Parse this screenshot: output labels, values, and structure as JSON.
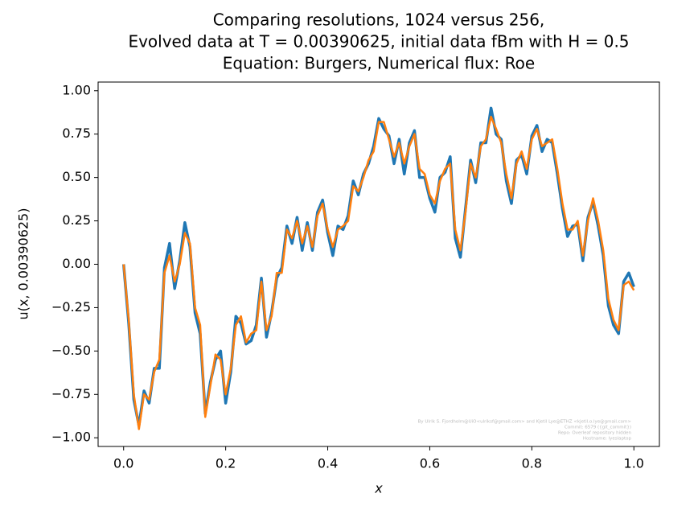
{
  "chart_data": {
    "type": "line",
    "title": [
      "Comparing resolutions, 1024 versus 256,",
      "Evolved data at T = 0.00390625, initial data fBm with H = 0.5",
      "Equation: Burgers, Numerical flux: Roe"
    ],
    "xlabel": "x",
    "ylabel": "u(x, 0.00390625)",
    "watermark": [
      "By Ulrik S. Fjordholm@UiO<ulriksf@gmail.com> and Kjetil Lye@ETHZ <kjetil.o.lye@gmail.com>",
      "Commit: 6579 ({git_commit})",
      "Repo: Overleaf repository hidden",
      "Hostname: lyeslaptop"
    ],
    "xlim": [
      -0.05,
      1.05
    ],
    "ylim": [
      -1.05,
      1.05
    ],
    "xticks": [
      {
        "value": 0,
        "label": "0.0"
      },
      {
        "value": 0.2,
        "label": "0.2"
      },
      {
        "value": 0.4,
        "label": "0.4"
      },
      {
        "value": 0.6,
        "label": "0.6"
      },
      {
        "value": 0.8,
        "label": "0.8"
      },
      {
        "value": 1,
        "label": "1.0"
      }
    ],
    "yticks": [
      {
        "value": -1,
        "label": "−1.00"
      },
      {
        "value": -0.75,
        "label": "−0.75"
      },
      {
        "value": -0.5,
        "label": "−0.50"
      },
      {
        "value": -0.25,
        "label": "−0.25"
      },
      {
        "value": 0,
        "label": "0.00"
      },
      {
        "value": 0.25,
        "label": "0.25"
      },
      {
        "value": 0.5,
        "label": "0.50"
      },
      {
        "value": 0.75,
        "label": "0.75"
      },
      {
        "value": 1,
        "label": "1.00"
      }
    ],
    "grid": false,
    "x": [
      0,
      0.01,
      0.02,
      0.03,
      0.04,
      0.05,
      0.06,
      0.07,
      0.08,
      0.09,
      0.1,
      0.11,
      0.12,
      0.13,
      0.14,
      0.15,
      0.16,
      0.17,
      0.18,
      0.19,
      0.2,
      0.21,
      0.22,
      0.23,
      0.24,
      0.25,
      0.26,
      0.27,
      0.28,
      0.29,
      0.3,
      0.31,
      0.32,
      0.33,
      0.34,
      0.35,
      0.36,
      0.37,
      0.38,
      0.39,
      0.4,
      0.41,
      0.42,
      0.43,
      0.44,
      0.45,
      0.46,
      0.47,
      0.48,
      0.49,
      0.5,
      0.51,
      0.52,
      0.53,
      0.54,
      0.55,
      0.56,
      0.57,
      0.58,
      0.59,
      0.6,
      0.61,
      0.62,
      0.63,
      0.64,
      0.65,
      0.66,
      0.67,
      0.68,
      0.69,
      0.7,
      0.71,
      0.72,
      0.73,
      0.74,
      0.75,
      0.76,
      0.77,
      0.78,
      0.79,
      0.8,
      0.81,
      0.82,
      0.83,
      0.84,
      0.85,
      0.86,
      0.87,
      0.88,
      0.89,
      0.9,
      0.91,
      0.92,
      0.93,
      0.94,
      0.95,
      0.96,
      0.97,
      0.98,
      0.99,
      1
    ],
    "series": [
      {
        "color": "#1f77b4",
        "values": [
          0,
          -0.34,
          -0.78,
          -0.93,
          -0.73,
          -0.8,
          -0.6,
          -0.6,
          -0.02,
          0.12,
          -0.14,
          0.02,
          0.24,
          0.1,
          -0.28,
          -0.4,
          -0.86,
          -0.68,
          -0.55,
          -0.5,
          -0.8,
          -0.62,
          -0.3,
          -0.34,
          -0.46,
          -0.44,
          -0.35,
          -0.08,
          -0.42,
          -0.28,
          -0.08,
          -0.02,
          0.22,
          0.12,
          0.27,
          0.08,
          0.24,
          0.08,
          0.3,
          0.37,
          0.18,
          0.05,
          0.22,
          0.2,
          0.28,
          0.48,
          0.4,
          0.52,
          0.58,
          0.68,
          0.84,
          0.78,
          0.74,
          0.58,
          0.72,
          0.52,
          0.7,
          0.77,
          0.5,
          0.5,
          0.38,
          0.3,
          0.5,
          0.53,
          0.62,
          0.15,
          0.04,
          0.32,
          0.6,
          0.47,
          0.7,
          0.7,
          0.9,
          0.75,
          0.72,
          0.48,
          0.35,
          0.6,
          0.63,
          0.52,
          0.74,
          0.8,
          0.65,
          0.72,
          0.7,
          0.52,
          0.32,
          0.16,
          0.22,
          0.23,
          0.02,
          0.27,
          0.36,
          0.22,
          0.05,
          -0.24,
          -0.35,
          -0.4,
          -0.1,
          -0.05,
          -0.13
        ]
      },
      {
        "color": "#ff7f0e",
        "values": [
          0,
          -0.32,
          -0.75,
          -0.95,
          -0.75,
          -0.78,
          -0.62,
          -0.55,
          -0.05,
          0.05,
          -0.1,
          0,
          0.18,
          0.12,
          -0.25,
          -0.35,
          -0.88,
          -0.7,
          -0.52,
          -0.55,
          -0.75,
          -0.6,
          -0.35,
          -0.3,
          -0.45,
          -0.4,
          -0.38,
          -0.1,
          -0.38,
          -0.3,
          -0.05,
          -0.05,
          0.2,
          0.15,
          0.25,
          0.12,
          0.22,
          0.1,
          0.28,
          0.35,
          0.2,
          0.1,
          0.2,
          0.22,
          0.25,
          0.45,
          0.42,
          0.5,
          0.6,
          0.65,
          0.82,
          0.82,
          0.72,
          0.62,
          0.7,
          0.58,
          0.68,
          0.75,
          0.55,
          0.52,
          0.4,
          0.35,
          0.48,
          0.55,
          0.58,
          0.2,
          0.08,
          0.3,
          0.58,
          0.5,
          0.68,
          0.72,
          0.85,
          0.78,
          0.7,
          0.52,
          0.38,
          0.58,
          0.65,
          0.55,
          0.72,
          0.78,
          0.68,
          0.7,
          0.72,
          0.55,
          0.35,
          0.2,
          0.2,
          0.25,
          0.05,
          0.25,
          0.38,
          0.25,
          0.08,
          -0.2,
          -0.32,
          -0.38,
          -0.12,
          -0.1,
          -0.15
        ]
      }
    ]
  }
}
